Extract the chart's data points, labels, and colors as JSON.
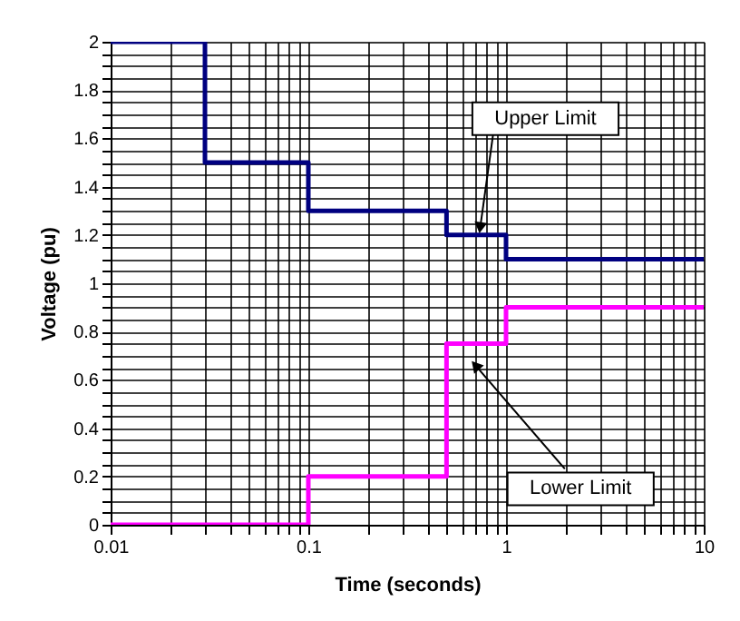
{
  "chart_data": {
    "type": "step",
    "xlabel": "Time (seconds)",
    "ylabel": "Voltage (pu)",
    "log": "x",
    "xlim": [
      0.01,
      10
    ],
    "ylim": [
      0,
      2
    ],
    "xticks": [
      0.01,
      {
        "value": 0.02,
        "label": null
      },
      {
        "value": 0.03,
        "label": null
      },
      {
        "value": 0.04,
        "label": null
      },
      {
        "value": 0.05,
        "label": null
      },
      {
        "value": 0.06,
        "label": null
      },
      {
        "value": 0.07,
        "label": null
      },
      {
        "value": 0.08,
        "label": null
      },
      {
        "value": 0.09,
        "label": null
      },
      0.1,
      {
        "value": 0.2,
        "label": null
      },
      {
        "value": 0.3,
        "label": null
      },
      {
        "value": 0.4,
        "label": null
      },
      {
        "value": 0.5,
        "label": null
      },
      {
        "value": 0.6,
        "label": null
      },
      {
        "value": 0.7,
        "label": null
      },
      {
        "value": 0.8,
        "label": null
      },
      {
        "value": 0.9,
        "label": null
      },
      1,
      {
        "value": 2,
        "label": null
      },
      {
        "value": 3,
        "label": null
      },
      {
        "value": 4,
        "label": null
      },
      {
        "value": 5,
        "label": null
      },
      {
        "value": 6,
        "label": null
      },
      {
        "value": 7,
        "label": null
      },
      {
        "value": 8,
        "label": null
      },
      {
        "value": 9,
        "label": null
      },
      10
    ],
    "yticks": [
      0,
      {
        "value": 0.05,
        "label": null
      },
      {
        "value": 0.1,
        "label": null
      },
      {
        "value": 0.15,
        "label": null
      },
      0.2,
      {
        "value": 0.25,
        "label": null
      },
      {
        "value": 0.3,
        "label": null
      },
      {
        "value": 0.35,
        "label": null
      },
      0.4,
      {
        "value": 0.45,
        "label": null
      },
      {
        "value": 0.5,
        "label": null
      },
      {
        "value": 0.55,
        "label": null
      },
      0.6,
      {
        "value": 0.65,
        "label": null
      },
      {
        "value": 0.7,
        "label": null
      },
      {
        "value": 0.75,
        "label": null
      },
      0.8,
      {
        "value": 0.85,
        "label": null
      },
      {
        "value": 0.9,
        "label": null
      },
      {
        "value": 0.95,
        "label": null
      },
      1,
      {
        "value": 1.05,
        "label": null
      },
      {
        "value": 1.1,
        "label": null
      },
      {
        "value": 1.15,
        "label": null
      },
      1.2,
      {
        "value": 1.25,
        "label": null
      },
      {
        "value": 1.3,
        "label": null
      },
      {
        "value": 1.35,
        "label": null
      },
      1.4,
      {
        "value": 1.45,
        "label": null
      },
      {
        "value": 1.5,
        "label": null
      },
      {
        "value": 1.55,
        "label": null
      },
      1.6,
      {
        "value": 1.65,
        "label": null
      },
      {
        "value": 1.7,
        "label": null
      },
      {
        "value": 1.75,
        "label": null
      },
      1.8,
      {
        "value": 1.85,
        "label": null
      },
      {
        "value": 1.9,
        "label": null
      },
      {
        "value": 1.95,
        "label": null
      },
      2
    ],
    "grid": true,
    "line_style": "solid",
    "marker": "none",
    "series": [
      {
        "color": "#000080",
        "x": [
          0.01,
          0.03,
          0.1,
          0.5,
          1,
          10
        ],
        "values": [
          2,
          1.5,
          1.3,
          1.2,
          1.1,
          1.1
        ]
      },
      {
        "color": "#ff00ff",
        "x": [
          0.01,
          0.1,
          0.5,
          1,
          10
        ],
        "values": [
          0,
          0.2,
          0.75,
          0.9,
          0.9
        ]
      }
    ],
    "annotations": [
      {
        "text": "Upper Limit",
        "x": 0.74,
        "y": 1.23
      },
      {
        "text": "Lower Limit",
        "x": 0.7,
        "y": 0.66
      }
    ]
  }
}
